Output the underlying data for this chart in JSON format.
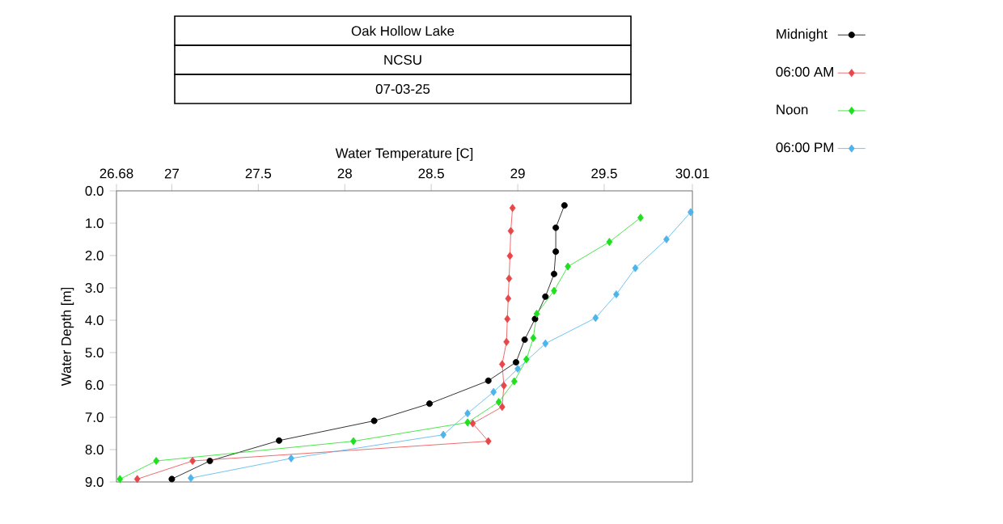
{
  "chart_data": {
    "type": "line",
    "title": "Oak Hollow Lake",
    "subtitle": "NCSU",
    "annotations": [
      "07-03-25"
    ],
    "xlabel": "Water Temperature [C]",
    "ylabel": "Water Depth [m]",
    "xlim": [
      26.68,
      30.01
    ],
    "xticks": [
      26.68,
      27,
      27.5,
      28,
      28.5,
      29,
      29.5,
      30.01
    ],
    "ylim": [
      9.0,
      0.0
    ],
    "yticks": [
      {
        "value": 0,
        "label": "0.0"
      },
      {
        "value": 1,
        "label": "1.0"
      },
      {
        "value": 2,
        "label": "2.0"
      },
      {
        "value": 3,
        "label": "3.0"
      },
      {
        "value": 4,
        "label": "4.0"
      },
      {
        "value": 5,
        "label": "5.0"
      },
      {
        "value": 6,
        "label": "6.0"
      },
      {
        "value": 7,
        "label": "7.0"
      },
      {
        "value": 8,
        "label": "8.0"
      },
      {
        "value": 9,
        "label": "9.0"
      }
    ],
    "grid": false,
    "legend": "top right",
    "line_style": "solid",
    "series": [
      {
        "name": "Midnight",
        "color": "#000000",
        "marker": "circle",
        "x": [
          29.27,
          29.22,
          29.22,
          29.21,
          29.16,
          29.1,
          29.04,
          28.99,
          28.83,
          28.49,
          28.17,
          27.62,
          27.22,
          27.0
        ],
        "values": [
          0.45,
          1.14,
          1.88,
          2.57,
          3.27,
          3.96,
          4.6,
          5.3,
          5.87,
          6.58,
          7.11,
          7.72,
          8.35,
          8.91
        ]
      },
      {
        "name": "06:00 AM",
        "color": "#e8474a",
        "marker": "diamond",
        "x": [
          28.97,
          28.96,
          28.955,
          28.95,
          28.945,
          28.94,
          28.935,
          28.91,
          28.92,
          28.91,
          28.74,
          28.83,
          27.12,
          26.8
        ],
        "values": [
          0.53,
          1.24,
          2.01,
          2.71,
          3.33,
          3.96,
          4.67,
          5.36,
          6.02,
          6.68,
          7.19,
          7.74,
          8.35,
          8.91
        ]
      },
      {
        "name": "Noon",
        "color": "#1ee01e",
        "marker": "diamond",
        "x": [
          29.71,
          29.53,
          29.29,
          29.21,
          29.11,
          29.09,
          29.05,
          28.98,
          28.89,
          28.71,
          28.05,
          26.91,
          26.7
        ],
        "values": [
          0.83,
          1.58,
          2.34,
          3.09,
          3.8,
          4.55,
          5.21,
          5.89,
          6.53,
          7.16,
          7.74,
          8.35,
          8.91
        ]
      },
      {
        "name": "06:00 PM",
        "color": "#4db4ec",
        "marker": "diamond",
        "x": [
          30.0,
          29.86,
          29.68,
          29.57,
          29.45,
          29.16,
          29.0,
          28.86,
          28.71,
          28.57,
          27.69,
          27.11
        ],
        "values": [
          0.66,
          1.5,
          2.39,
          3.2,
          3.93,
          4.72,
          5.5,
          6.22,
          6.88,
          7.54,
          8.27,
          8.88
        ]
      }
    ]
  }
}
